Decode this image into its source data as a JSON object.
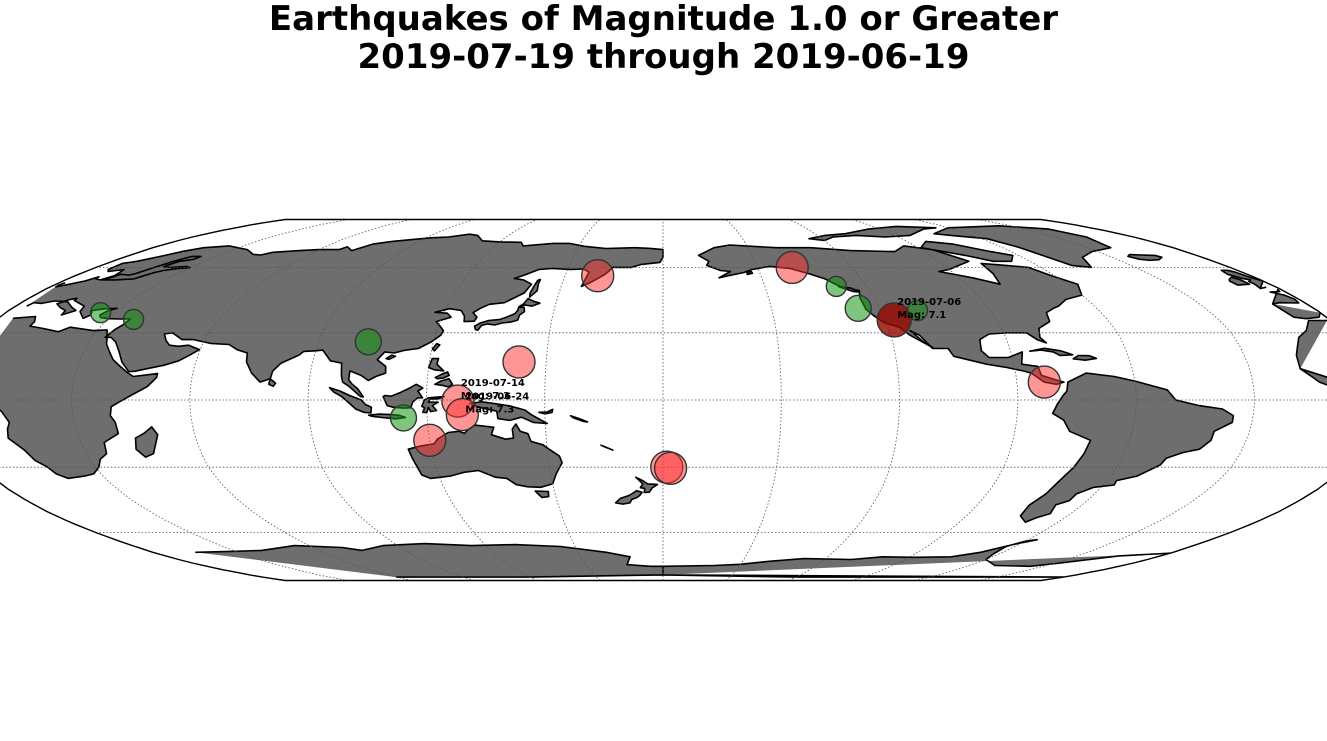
{
  "map": {
    "title_line1": "Earthquakes of Magnitude 1.0 or Greater",
    "title_line2": "2019-07-19 through 2019-06-19",
    "projection": "robinson",
    "center_longitude": -180,
    "land_color": "#6e6e6e",
    "coastline_color": "#000000",
    "grid": true,
    "graticule_spacing_deg": 30,
    "colors": {
      "large": "#ff2a2a",
      "small": "#1f9a1f"
    }
  },
  "quakes": [
    {
      "lon": 160.0,
      "lat": 56.0,
      "size": "large",
      "mag_class": "red"
    },
    {
      "lon": -139.0,
      "lat": 60.0,
      "size": "large",
      "mag_class": "red"
    },
    {
      "lon": -129.0,
      "lat": 51.0,
      "size": "small",
      "mag_class": "green"
    },
    {
      "lon": -126.0,
      "lat": 41.0,
      "size": "medium",
      "mag_class": "green"
    },
    {
      "lon": -117.6,
      "lat": 35.8,
      "size": "xlarge",
      "mag_class": "darkred"
    },
    {
      "lon": -110.0,
      "lat": 40.0,
      "size": "small",
      "mag_class": "green"
    },
    {
      "lon": -83.0,
      "lat": 8.0,
      "size": "large",
      "mag_class": "red"
    },
    {
      "lon": 26.0,
      "lat": 39.0,
      "size": "small",
      "mag_class": "green"
    },
    {
      "lon": 37.0,
      "lat": 36.0,
      "size": "small",
      "mag_class": "green"
    },
    {
      "lon": 103.0,
      "lat": 26.0,
      "size": "medium",
      "mag_class": "green"
    },
    {
      "lon": 143.0,
      "lat": 17.0,
      "size": "large",
      "mag_class": "red"
    },
    {
      "lon": 128.0,
      "lat": -0.5,
      "size": "large",
      "mag_class": "red"
    },
    {
      "lon": 129.0,
      "lat": -6.5,
      "size": "large",
      "mag_class": "red"
    },
    {
      "lon": 114.0,
      "lat": -8.0,
      "size": "medium",
      "mag_class": "green"
    },
    {
      "lon": 120.0,
      "lat": -18.0,
      "size": "large",
      "mag_class": "red"
    },
    {
      "lon": -179.0,
      "lat": -30.0,
      "size": "large",
      "mag_class": "red"
    },
    {
      "lon": -178.0,
      "lat": -30.5,
      "size": "large",
      "mag_class": "red"
    }
  ],
  "annotations": [
    {
      "lon": -117.6,
      "lat": 35.8,
      "date": "2019-07-06",
      "mag": "Mag: 7.1"
    },
    {
      "lon": 128.0,
      "lat": -0.5,
      "date": "2019-07-14",
      "mag": "Mag: 7.3"
    },
    {
      "lon": 129.0,
      "lat": -6.5,
      "date": "2019-06-24",
      "mag": "Mag: 7.3"
    }
  ]
}
